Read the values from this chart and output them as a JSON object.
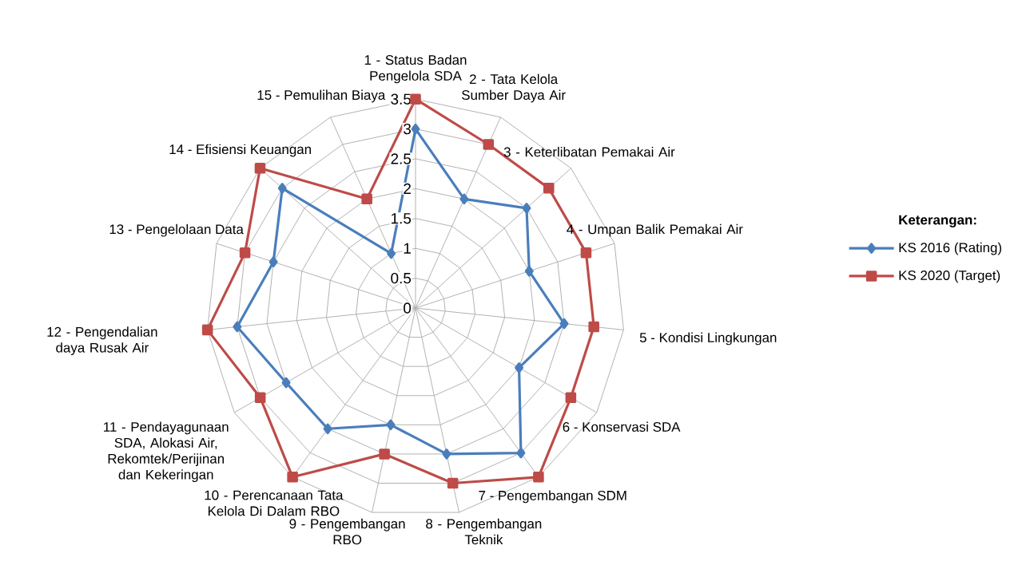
{
  "chart_data": {
    "type": "radar",
    "categories": [
      "1 - Status Badan Pengelola SDA",
      "2 - Tata Kelola Sumber Daya Air",
      "3 - Keterlibatan Pemakai Air",
      "4 - Umpan Balik Pemakai Air",
      "5 - Kondisi Lingkungan",
      "6 - Konservasi SDA",
      "7 - Pengembangan SDM",
      "8 - Pengembangan Teknik",
      "9 - Pengembangan RBO",
      "10 - Perencanaan Tata Kelola Di Dalam RBO",
      "11 - Pendayagunaan SDA, Alokasi Air, Rekomtek/Perijinan dan Kekeringan",
      "12 - Pengendalian daya Rusak Air",
      "13 - Pengelolaan Data",
      "14 - Efisiensi Keuangan",
      "15 - Pemulihan Biaya"
    ],
    "series": [
      {
        "name": "KS 2016 (Rating)",
        "color": "#4a7ebb",
        "marker": "diamond",
        "values": [
          3.0,
          2.0,
          2.5,
          2.0,
          2.5,
          2.0,
          3.0,
          2.5,
          2.0,
          2.5,
          2.5,
          3.0,
          2.5,
          3.0,
          1.0
        ]
      },
      {
        "name": "KS 2020 (Target)",
        "color": "#be4b48",
        "marker": "square",
        "values": [
          3.5,
          3.0,
          3.0,
          3.0,
          3.0,
          3.0,
          3.5,
          3.0,
          2.5,
          3.5,
          3.0,
          3.5,
          3.0,
          3.5,
          2.0
        ]
      }
    ],
    "ylim": [
      0,
      3.5
    ],
    "yticks": [
      0,
      0.5,
      1,
      1.5,
      2,
      2.5,
      3,
      3.5
    ],
    "legend_title": "Keterangan:",
    "legend": "right",
    "grid": true
  }
}
